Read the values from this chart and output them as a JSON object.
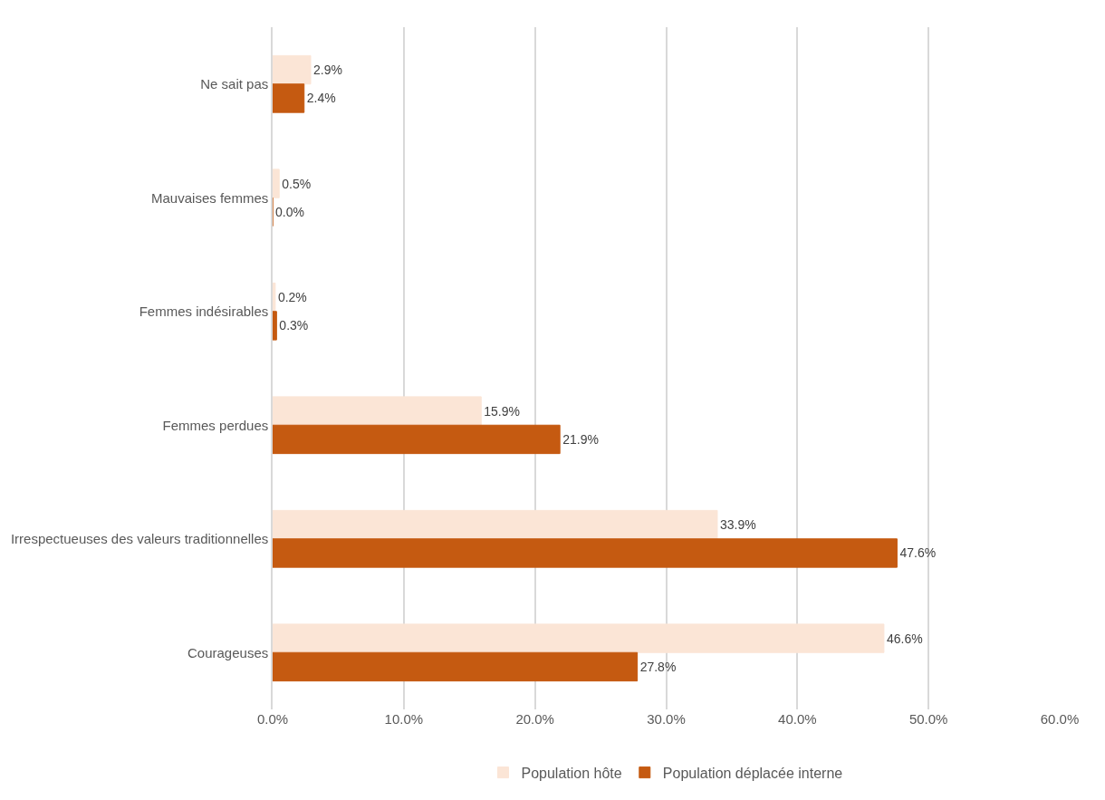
{
  "chart_data": {
    "type": "bar",
    "orientation": "horizontal",
    "categories": [
      "Ne sait pas",
      "Mauvaises femmes",
      "Femmes indésirables",
      "Femmes perdues",
      "Irrespectueuses des valeurs traditionnelles",
      "Courageuses"
    ],
    "series": [
      {
        "name": "Population hôte",
        "color": "#fbe5d6",
        "values": [
          2.9,
          0.5,
          0.2,
          15.9,
          33.9,
          46.6
        ],
        "value_labels": [
          "2.9%",
          "0.5%",
          "0.2%",
          "15.9%",
          "33.9%",
          "46.6%"
        ]
      },
      {
        "name": "Population déplacée interne",
        "color": "#c55a11",
        "values": [
          2.4,
          0.0,
          0.3,
          21.9,
          47.6,
          27.8
        ],
        "value_labels": [
          "2.4%",
          "0.0%",
          "0.3%",
          "21.9%",
          "47.6%",
          "27.8%"
        ]
      }
    ],
    "xlim": [
      0,
      60
    ],
    "xticks": [
      {
        "value": 0,
        "label": "0.0%"
      },
      {
        "value": 10,
        "label": "10.0%"
      },
      {
        "value": 20,
        "label": "20.0%"
      },
      {
        "value": 30,
        "label": "30.0%"
      },
      {
        "value": 40,
        "label": "40.0%"
      },
      {
        "value": 50,
        "label": "50.0%"
      },
      {
        "value": 60,
        "label": "60.0%"
      }
    ],
    "grid": "x",
    "legend": "bottom"
  }
}
